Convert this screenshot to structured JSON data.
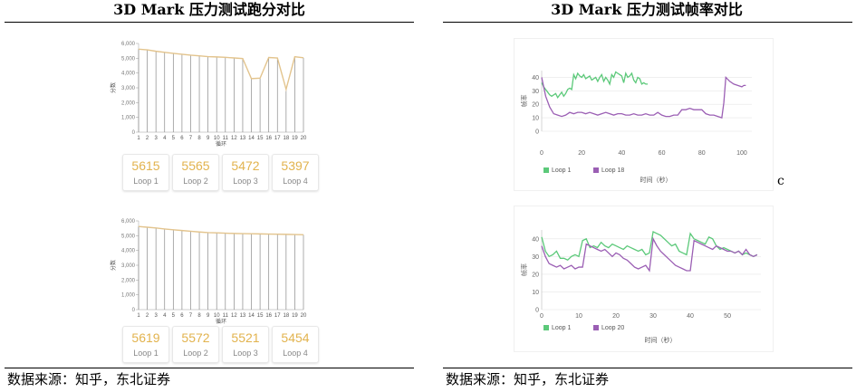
{
  "left_title": "3D Mark 压力测试跑分对比",
  "right_title": "3D Mark 压力测试帧率对比",
  "source_left": "数据来源：知乎，东北证券",
  "source_right": "数据来源：知乎，东北证券",
  "stray_mark": "c",
  "colors": {
    "score_line": "#e3c48d",
    "score_text": "#e2b34e",
    "loop1": "#5cc97a",
    "loop_other": "#9b5fb4",
    "grid": "#e6e6e6",
    "axis_text": "#777777"
  },
  "chart_data": [
    {
      "type": "line",
      "title": "",
      "xlabel": "循环",
      "ylabel": "分数",
      "ylim": [
        0,
        6000
      ],
      "yticks": [
        "0",
        "1,000",
        "2,000",
        "3,000",
        "4,000",
        "5,000",
        "6,000"
      ],
      "x": [
        1,
        2,
        3,
        4,
        5,
        6,
        7,
        8,
        9,
        10,
        11,
        12,
        13,
        14,
        15,
        16,
        17,
        18,
        19,
        20
      ],
      "series": [
        {
          "values": [
            5615,
            5565,
            5472,
            5397,
            5330,
            5270,
            5210,
            5165,
            5110,
            5090,
            5060,
            5020,
            4980,
            3620,
            3650,
            5050,
            5020,
            2900,
            5100,
            5030
          ]
        }
      ],
      "loops": [
        {
          "value": "5615",
          "label": "Loop 1"
        },
        {
          "value": "5565",
          "label": "Loop 2"
        },
        {
          "value": "5472",
          "label": "Loop 3"
        },
        {
          "value": "5397",
          "label": "Loop 4"
        }
      ]
    },
    {
      "type": "line",
      "title": "",
      "xlabel": "循环",
      "ylabel": "分数",
      "ylim": [
        0,
        6000
      ],
      "yticks": [
        "0",
        "1,000",
        "2,000",
        "3,000",
        "4,000",
        "5,000",
        "6,000"
      ],
      "x": [
        1,
        2,
        3,
        4,
        5,
        6,
        7,
        8,
        9,
        10,
        11,
        12,
        13,
        14,
        15,
        16,
        17,
        18,
        19,
        20
      ],
      "series": [
        {
          "values": [
            5619,
            5572,
            5521,
            5454,
            5400,
            5350,
            5300,
            5250,
            5210,
            5190,
            5170,
            5150,
            5140,
            5130,
            5120,
            5110,
            5100,
            5090,
            5080,
            5060
          ]
        }
      ],
      "loops": [
        {
          "value": "5619",
          "label": "Loop 1"
        },
        {
          "value": "5572",
          "label": "Loop 2"
        },
        {
          "value": "5521",
          "label": "Loop 3"
        },
        {
          "value": "5454",
          "label": "Loop 4"
        }
      ]
    },
    {
      "type": "line",
      "title": "",
      "xlabel": "时间（秒）",
      "ylabel": "帧率",
      "xlim": [
        0,
        105
      ],
      "ylim": [
        0,
        45
      ],
      "xticks": [
        0,
        20,
        40,
        60,
        80,
        100
      ],
      "yticks": [
        0,
        10,
        20,
        30,
        40
      ],
      "series": [
        {
          "name": "Loop 1",
          "x": [
            0,
            1,
            2,
            3,
            4,
            5,
            6,
            7,
            8,
            9,
            10,
            11,
            12,
            13,
            14,
            15,
            16,
            17,
            18,
            19,
            20,
            21,
            22,
            23,
            24,
            25,
            26,
            27,
            28,
            29,
            30,
            31,
            32,
            33,
            34,
            35,
            36,
            37,
            38,
            39,
            40,
            41,
            42,
            43,
            44,
            45,
            46,
            47,
            48,
            49,
            50,
            51,
            52,
            53
          ],
          "values": [
            36,
            33,
            31,
            29,
            27,
            26,
            27,
            28,
            25,
            27,
            29,
            26,
            28,
            31,
            32,
            31,
            42,
            39,
            43,
            41,
            40,
            42,
            39,
            40,
            41,
            38,
            39,
            40,
            37,
            40,
            42,
            37,
            40,
            38,
            35,
            42,
            40,
            44,
            43,
            42,
            41,
            36,
            43,
            40,
            41,
            43,
            38,
            36,
            40,
            39,
            35,
            36,
            35,
            35
          ]
        },
        {
          "name": "Loop 18",
          "x": [
            0,
            2,
            4,
            6,
            8,
            10,
            12,
            14,
            16,
            18,
            20,
            22,
            24,
            26,
            28,
            30,
            32,
            34,
            36,
            38,
            40,
            42,
            44,
            46,
            48,
            50,
            52,
            54,
            56,
            58,
            60,
            62,
            64,
            66,
            68,
            70,
            72,
            74,
            76,
            78,
            80,
            82,
            84,
            86,
            88,
            90,
            91,
            92,
            94,
            96,
            98,
            100,
            101,
            102
          ],
          "values": [
            40,
            26,
            18,
            13,
            12,
            11,
            12,
            14,
            13,
            14,
            14,
            13,
            14,
            13,
            12,
            13,
            14,
            13,
            12,
            13,
            13,
            12,
            12,
            13,
            12,
            12,
            13,
            12,
            12,
            14,
            12,
            11,
            11,
            12,
            12,
            16,
            16,
            17,
            16,
            16,
            16,
            13,
            12,
            12,
            11,
            10,
            21,
            40,
            37,
            35,
            34,
            33,
            34,
            34
          ]
        }
      ]
    },
    {
      "type": "line",
      "title": "",
      "xlabel": "时间（秒）",
      "ylabel": "帧率",
      "xlim": [
        0,
        59
      ],
      "ylim": [
        0,
        45
      ],
      "xticks": [
        0,
        10,
        20,
        30,
        40,
        50
      ],
      "yticks": [
        0,
        10,
        20,
        30,
        40
      ],
      "series": [
        {
          "name": "Loop 1",
          "x": [
            0,
            1,
            2,
            3,
            4,
            5,
            6,
            7,
            8,
            9,
            10,
            11,
            12,
            13,
            14,
            15,
            16,
            17,
            18,
            19,
            20,
            21,
            22,
            23,
            24,
            25,
            26,
            27,
            28,
            29,
            30,
            31,
            32,
            33,
            34,
            35,
            36,
            37,
            38,
            39,
            40,
            41,
            42,
            43,
            44,
            45,
            46,
            47,
            48,
            49,
            50,
            51,
            52,
            53,
            54,
            55,
            56,
            57,
            58
          ],
          "values": [
            41,
            33,
            30,
            31,
            33,
            29,
            29,
            28,
            30,
            31,
            30,
            39,
            40,
            35,
            36,
            35,
            38,
            36,
            35,
            37,
            36,
            35,
            34,
            36,
            35,
            34,
            33,
            34,
            31,
            32,
            44,
            43,
            42,
            40,
            38,
            36,
            37,
            33,
            32,
            31,
            43,
            40,
            39,
            38,
            37,
            41,
            40,
            36,
            34,
            35,
            34,
            33,
            32,
            33,
            31,
            32,
            31,
            30,
            31
          ]
        },
        {
          "name": "Loop 20",
          "x": [
            0,
            1,
            2,
            3,
            4,
            5,
            6,
            7,
            8,
            9,
            10,
            11,
            12,
            13,
            14,
            15,
            16,
            17,
            18,
            19,
            20,
            21,
            22,
            23,
            24,
            25,
            26,
            27,
            28,
            29,
            30,
            31,
            32,
            33,
            34,
            35,
            36,
            37,
            38,
            39,
            40,
            41,
            42,
            43,
            44,
            45,
            46,
            47,
            48,
            49,
            50,
            51,
            52,
            53,
            54,
            55,
            56,
            57,
            58
          ],
          "values": [
            36,
            30,
            26,
            25,
            24,
            25,
            23,
            24,
            25,
            23,
            24,
            24,
            37,
            36,
            35,
            34,
            33,
            34,
            32,
            30,
            32,
            31,
            29,
            28,
            26,
            24,
            23,
            24,
            25,
            22,
            40,
            36,
            33,
            31,
            29,
            27,
            25,
            24,
            23,
            22,
            22,
            39,
            38,
            37,
            36,
            35,
            34,
            36,
            35,
            34,
            33,
            33,
            32,
            33,
            31,
            34,
            31,
            30,
            31
          ]
        }
      ]
    }
  ]
}
